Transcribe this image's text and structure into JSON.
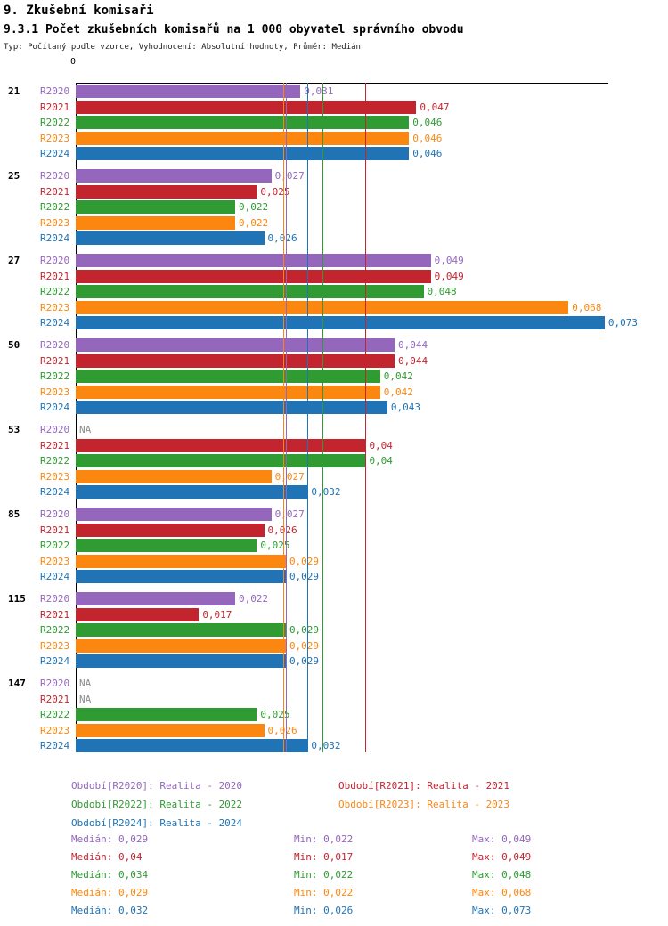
{
  "header": {
    "title": "9. Zkušební komisaři",
    "subtitle": "9.3.1 Počet zkušebních komisařů na 1 000 obyvatel správního obvodu",
    "note": "Typ: Počítaný podle vzorce, Vyhodnocení: Absolutní hodnoty, Průměr: Medián"
  },
  "chart_data": {
    "type": "bar",
    "orientation": "horizontal",
    "title": "9.3.1 Počet zkušebních komisařů na 1 000 obyvatel správního obvodu",
    "xlabel": "",
    "ylabel": "",
    "xlim": [
      0,
      0.0735
    ],
    "grid": false,
    "legend_position": "bottom",
    "axis_zero_label": "0",
    "na_color": "#8c8c8c",
    "categories": [
      "21",
      "25",
      "27",
      "50",
      "53",
      "85",
      "115",
      "147"
    ],
    "series": [
      {
        "name": "R2020",
        "color": "#9467bd",
        "values": [
          0.031,
          0.027,
          0.049,
          0.044,
          null,
          0.027,
          0.022,
          null
        ],
        "value_labels": [
          "0,031",
          "0,027",
          "0,049",
          "0,044",
          "NA",
          "0,027",
          "0,022",
          "NA"
        ],
        "median": 0.029,
        "legend_label": "Období[R2020]: Realita - 2020",
        "stats": {
          "median": "Medián: 0,029",
          "min": "Min: 0,022",
          "max": "Max: 0,049"
        }
      },
      {
        "name": "R2021",
        "color": "#c2252e",
        "values": [
          0.047,
          0.025,
          0.049,
          0.044,
          0.04,
          0.026,
          0.017,
          null
        ],
        "value_labels": [
          "0,047",
          "0,025",
          "0,049",
          "0,044",
          "0,04",
          "0,026",
          "0,017",
          "NA"
        ],
        "median": 0.04,
        "legend_label": "Období[R2021]: Realita - 2021",
        "stats": {
          "median": "Medián: 0,04",
          "min": "Min: 0,017",
          "max": "Max: 0,049"
        }
      },
      {
        "name": "R2022",
        "color": "#2f9b32",
        "values": [
          0.046,
          0.022,
          0.048,
          0.042,
          0.04,
          0.025,
          0.029,
          0.025
        ],
        "value_labels": [
          "0,046",
          "0,022",
          "0,048",
          "0,042",
          "0,04",
          "0,025",
          "0,029",
          "0,025"
        ],
        "median": 0.034,
        "legend_label": "Období[R2022]: Realita - 2022",
        "stats": {
          "median": "Medián: 0,034",
          "min": "Min: 0,022",
          "max": "Max: 0,048"
        }
      },
      {
        "name": "R2023",
        "color": "#fc8710",
        "values": [
          0.046,
          0.022,
          0.068,
          0.042,
          0.027,
          0.029,
          0.029,
          0.026
        ],
        "value_labels": [
          "0,046",
          "0,022",
          "0,068",
          "0,042",
          "0,027",
          "0,029",
          "0,029",
          "0,026"
        ],
        "median": 0.029,
        "legend_label": "Období[R2023]: Realita - 2023",
        "stats": {
          "median": "Medián: 0,029",
          "min": "Min: 0,022",
          "max": "Max: 0,068"
        }
      },
      {
        "name": "R2024",
        "color": "#2074b6",
        "values": [
          0.046,
          0.026,
          0.073,
          0.043,
          0.032,
          0.029,
          0.029,
          0.032
        ],
        "value_labels": [
          "0,046",
          "0,026",
          "0,073",
          "0,043",
          "0,032",
          "0,029",
          "0,029",
          "0,032"
        ],
        "median": 0.032,
        "legend_label": "Období[R2024]: Realita - 2024",
        "stats": {
          "median": "Medián: 0,032",
          "min": "Min: 0,026",
          "max": "Max: 0,073"
        }
      }
    ]
  }
}
